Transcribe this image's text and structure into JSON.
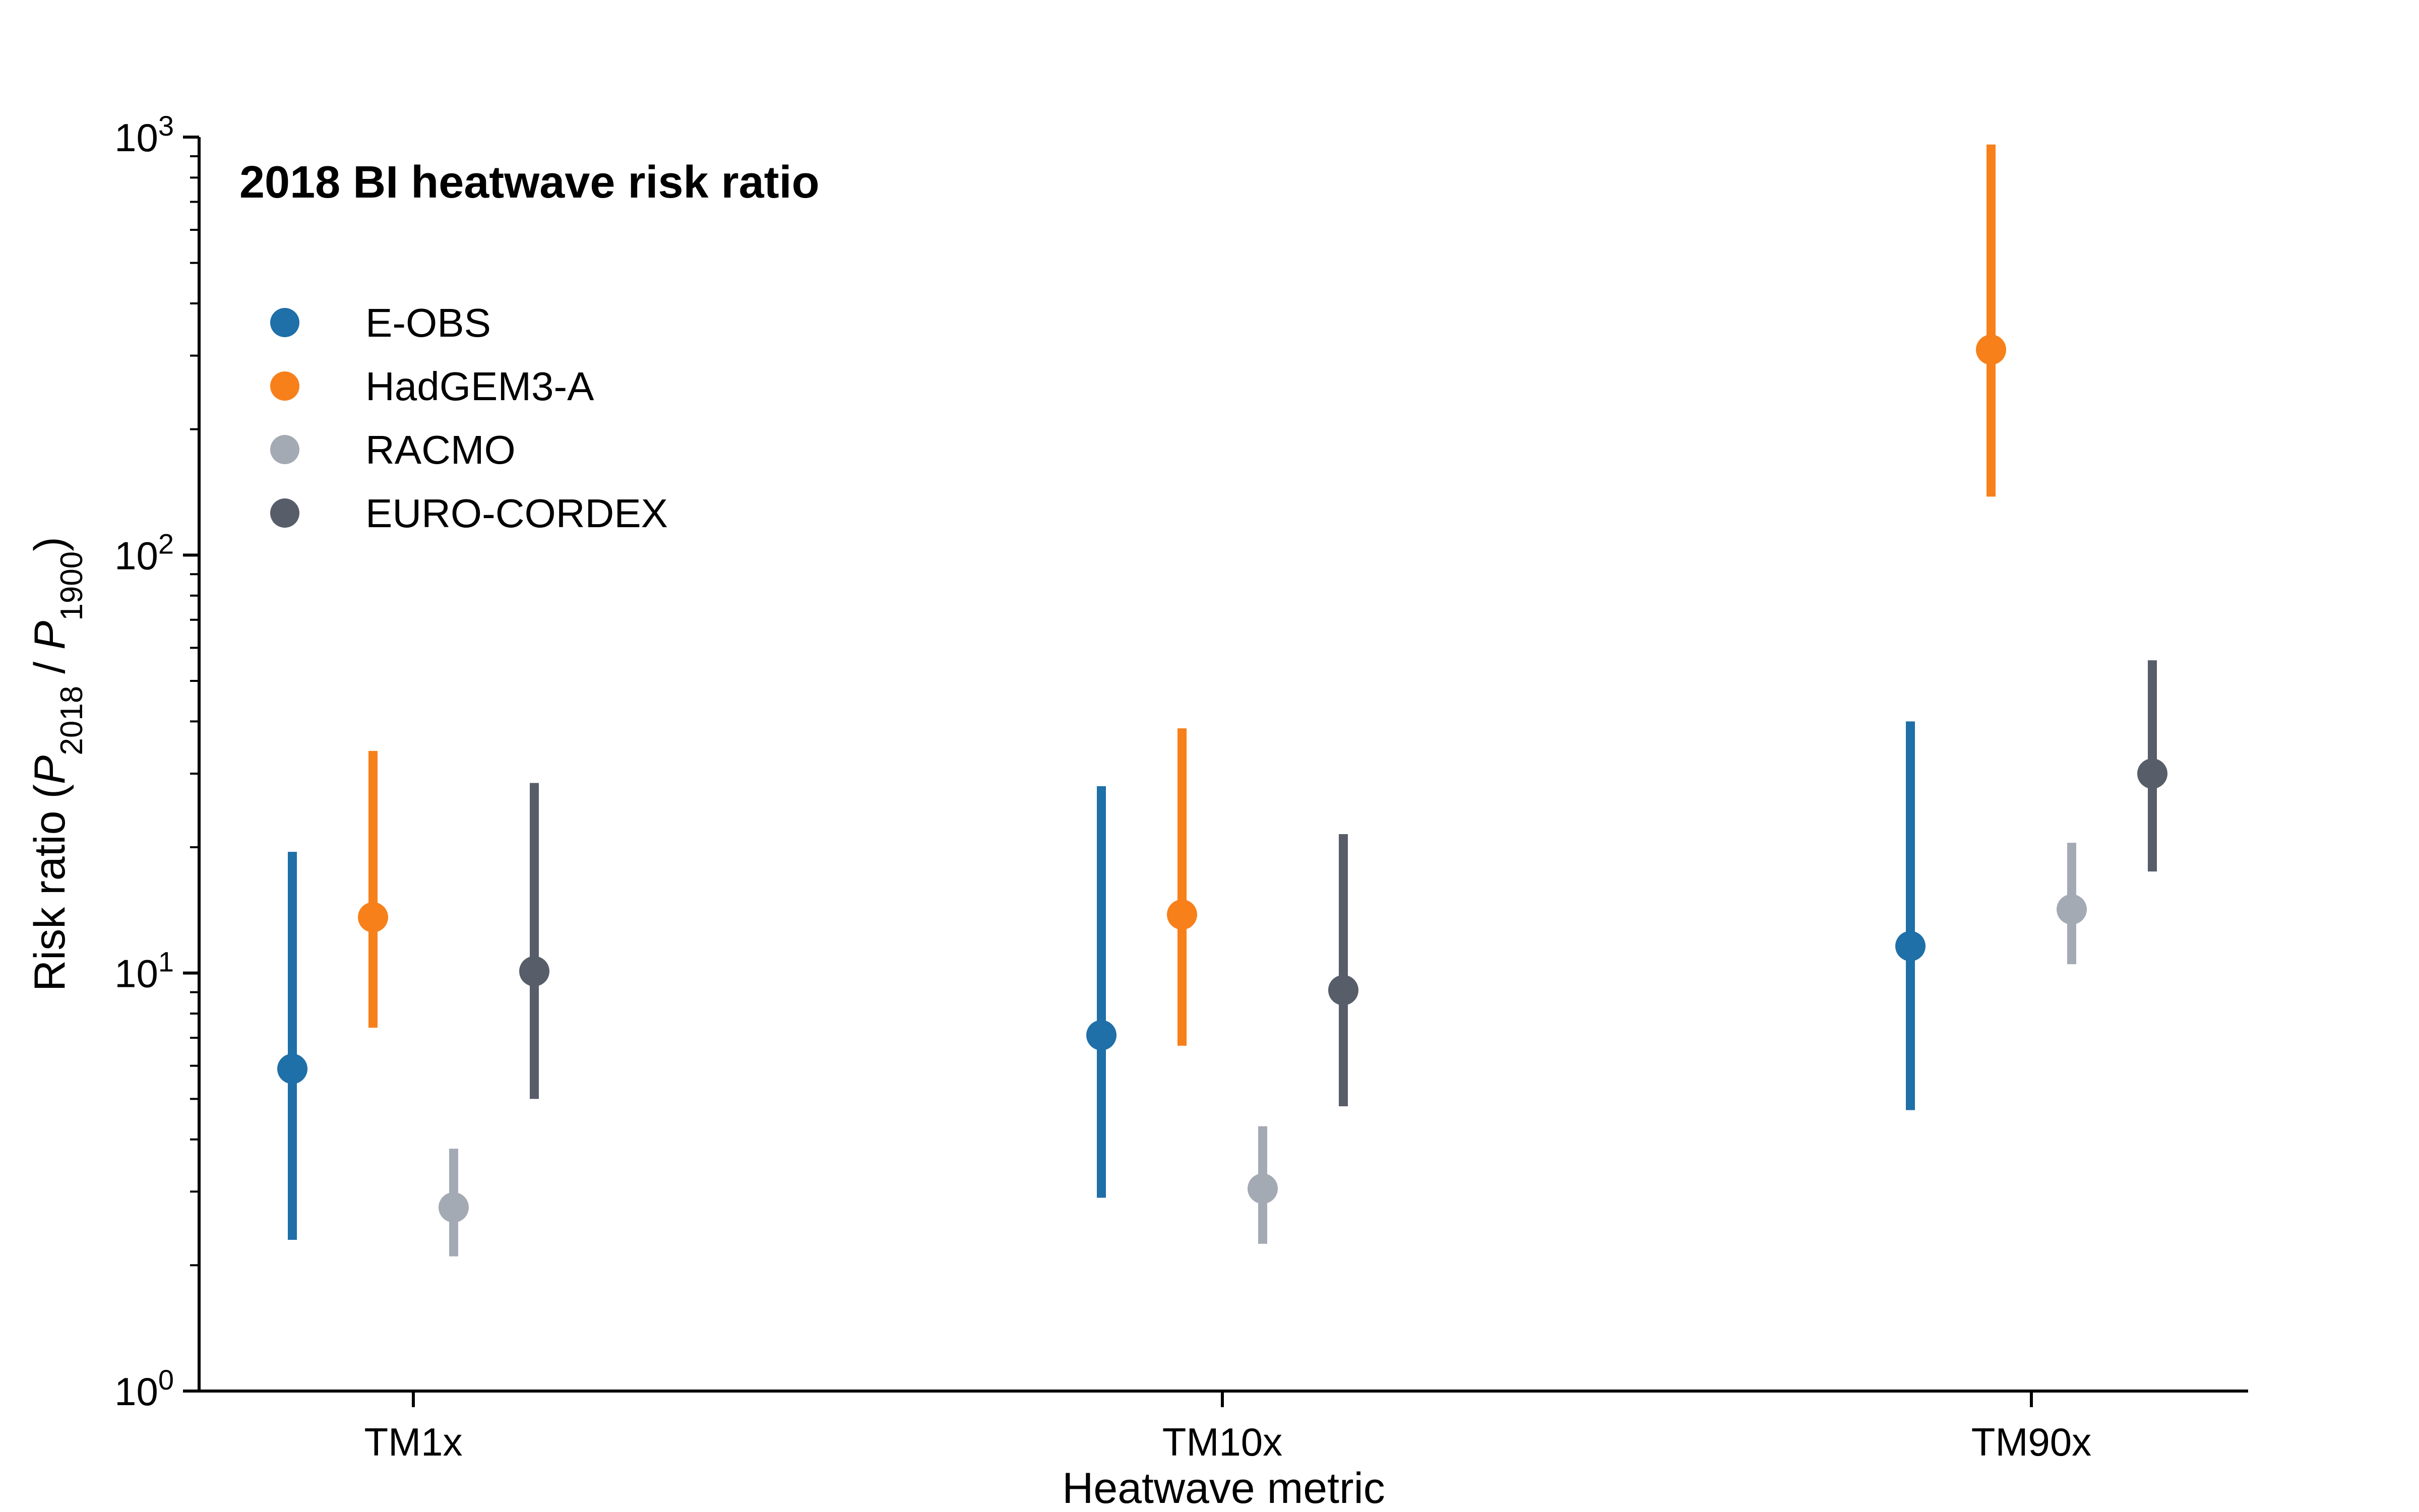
{
  "chart_data": {
    "type": "scatter",
    "title": "2018 BI heatwave risk ratio",
    "xlabel": "Heatwave metric",
    "ylabel": {
      "prefix": "Risk ratio (",
      "num_var": "P",
      "num_sub": "2018",
      "divider": " / ",
      "den_var": "P",
      "den_sub": "1900",
      "suffix": ")"
    },
    "yscale": "log",
    "ylim": [
      1,
      1000
    ],
    "yticks": [
      {
        "base": "10",
        "exp": "0",
        "value": 1
      },
      {
        "base": "10",
        "exp": "1",
        "value": 10
      },
      {
        "base": "10",
        "exp": "2",
        "value": 100
      },
      {
        "base": "10",
        "exp": "3",
        "value": 1000
      }
    ],
    "categories": [
      "TM1x",
      "TM10x",
      "TM90x"
    ],
    "grid": false,
    "legend_position": "upper-left",
    "series": [
      {
        "name": "E-OBS",
        "color": "#1f6fa8",
        "points": [
          {
            "value": 5.9,
            "low": 2.3,
            "high": 19.5
          },
          {
            "value": 7.1,
            "low": 2.9,
            "high": 28
          },
          {
            "value": 11.6,
            "low": 4.7,
            "high": 40
          }
        ]
      },
      {
        "name": "HadGEM3-A",
        "color": "#f7801a",
        "points": [
          {
            "value": 13.6,
            "low": 7.4,
            "high": 34
          },
          {
            "value": 13.8,
            "low": 6.7,
            "high": 38.5
          },
          {
            "value": 310,
            "low": 138,
            "high": 960
          }
        ]
      },
      {
        "name": "RACMO",
        "color": "#a4aab4",
        "points": [
          {
            "value": 2.75,
            "low": 2.1,
            "high": 3.8
          },
          {
            "value": 3.05,
            "low": 2.25,
            "high": 4.3
          },
          {
            "value": 14.2,
            "low": 10.5,
            "high": 20.5
          }
        ]
      },
      {
        "name": "EURO-CORDEX",
        "color": "#575d69",
        "points": [
          {
            "value": 10.1,
            "low": 5,
            "high": 28.5
          },
          {
            "value": 9.1,
            "low": 4.8,
            "high": 21.5
          },
          {
            "value": 30,
            "low": 17.5,
            "high": 56
          }
        ]
      }
    ]
  }
}
